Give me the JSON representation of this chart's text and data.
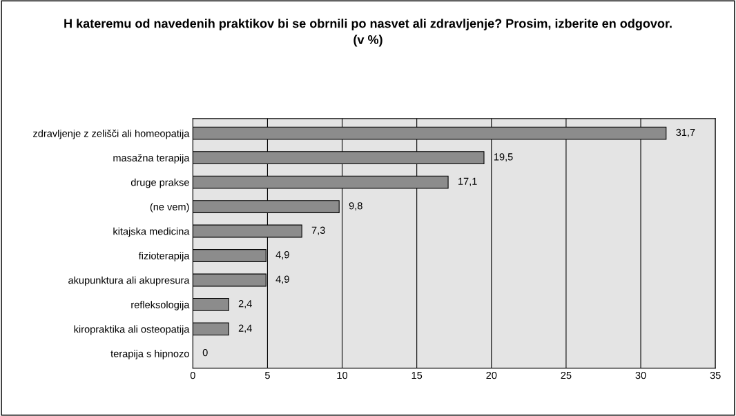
{
  "chart_data": {
    "type": "bar",
    "orientation": "horizontal",
    "title": "H kateremu od navedenih praktikov bi se obrnili po nasvet ali zdravljenje? Prosim, izberite en odgovor.\n(v %)",
    "categories": [
      "zdravljenje z zelišči ali homeopatija",
      "masažna terapija",
      "druge prakse",
      "(ne vem)",
      "kitajska medicina",
      "fizioterapija",
      "akupunktura ali akupresura",
      "refleksologija",
      "kiropraktika ali osteopatija",
      "terapija s hipnozo"
    ],
    "values": [
      31.7,
      19.5,
      17.1,
      9.8,
      7.3,
      4.9,
      4.9,
      2.4,
      2.4,
      0
    ],
    "value_labels": [
      "31,7",
      "19,5",
      "17,1",
      "9,8",
      "7,3",
      "4,9",
      "4,9",
      "2,4",
      "2,4",
      "0"
    ],
    "color": "#8c8c8c",
    "xlim": [
      0,
      35
    ],
    "xticks": [
      0,
      5,
      10,
      15,
      20,
      25,
      30,
      35
    ],
    "grid": "x"
  }
}
